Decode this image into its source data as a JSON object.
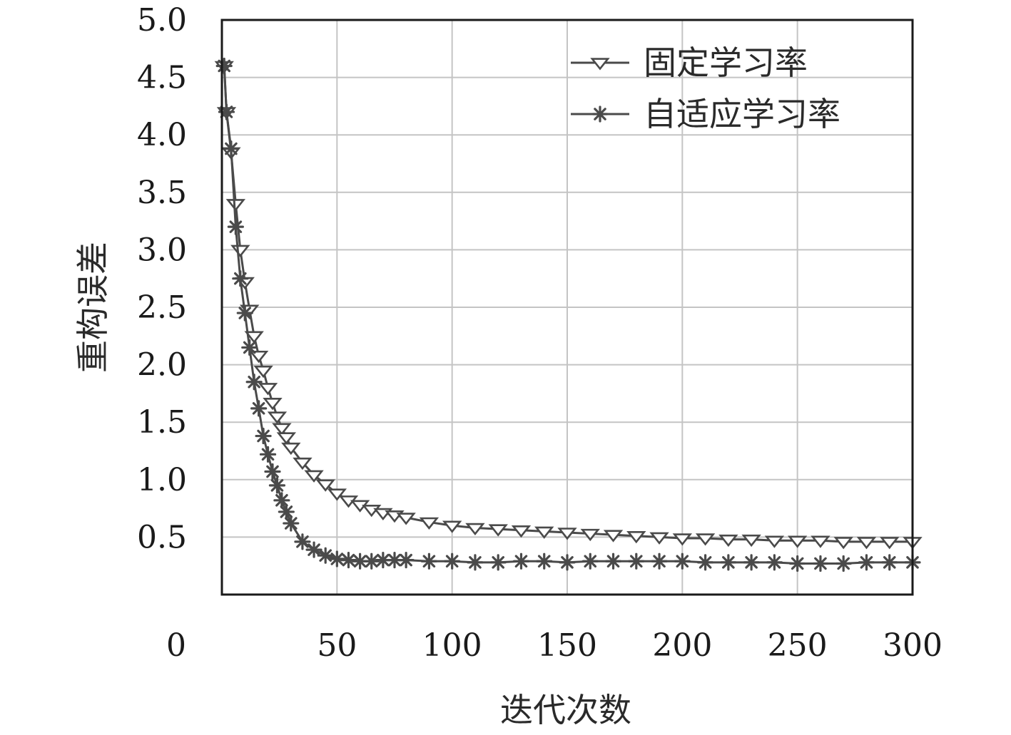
{
  "chart_data": {
    "type": "line",
    "title": "",
    "xlabel": "迭代次数",
    "ylabel": "重构误差",
    "xlim": [
      0,
      300
    ],
    "ylim": [
      0,
      5.0
    ],
    "xticks": [
      0,
      50,
      100,
      150,
      200,
      250,
      300
    ],
    "xtick_labels": [
      "0",
      "50",
      "100",
      "150",
      "200",
      "250",
      "300"
    ],
    "yticks": [
      0.5,
      1.0,
      1.5,
      2.0,
      2.5,
      3.0,
      3.5,
      4.0,
      4.5,
      5.0
    ],
    "ytick_labels": [
      "0.5",
      "1.0",
      "1.5",
      "2.0",
      "2.5",
      "3.0",
      "3.5",
      "4.0",
      "4.5",
      "5.0"
    ],
    "grid": true,
    "legend_position": "top-right",
    "line_color": "#4a4a4a",
    "series": [
      {
        "name": "固定学习率",
        "marker": "triangle-down",
        "x": [
          1,
          2,
          4,
          6,
          8,
          10,
          12,
          14,
          16,
          18,
          20,
          22,
          24,
          26,
          28,
          30,
          35,
          40,
          45,
          50,
          55,
          60,
          65,
          70,
          75,
          80,
          90,
          100,
          110,
          120,
          130,
          140,
          150,
          160,
          170,
          180,
          190,
          200,
          210,
          220,
          230,
          240,
          250,
          260,
          270,
          280,
          290,
          300
        ],
        "y": [
          4.6,
          4.2,
          3.85,
          3.4,
          3.0,
          2.72,
          2.48,
          2.25,
          2.08,
          1.95,
          1.8,
          1.67,
          1.55,
          1.45,
          1.37,
          1.28,
          1.15,
          1.04,
          0.96,
          0.88,
          0.82,
          0.78,
          0.74,
          0.71,
          0.69,
          0.67,
          0.63,
          0.6,
          0.58,
          0.57,
          0.56,
          0.55,
          0.54,
          0.53,
          0.52,
          0.51,
          0.5,
          0.49,
          0.49,
          0.48,
          0.48,
          0.47,
          0.47,
          0.47,
          0.46,
          0.46,
          0.46,
          0.46
        ]
      },
      {
        "name": "自适应学习率",
        "marker": "asterisk",
        "x": [
          1,
          2,
          4,
          6,
          8,
          10,
          12,
          14,
          16,
          18,
          20,
          22,
          24,
          26,
          28,
          30,
          35,
          40,
          45,
          50,
          55,
          60,
          65,
          70,
          75,
          80,
          90,
          100,
          110,
          120,
          130,
          140,
          150,
          160,
          170,
          180,
          190,
          200,
          210,
          220,
          230,
          240,
          250,
          260,
          270,
          280,
          290,
          300
        ],
        "y": [
          4.6,
          4.2,
          3.88,
          3.2,
          2.75,
          2.45,
          2.15,
          1.85,
          1.62,
          1.38,
          1.22,
          1.07,
          0.95,
          0.82,
          0.72,
          0.62,
          0.46,
          0.39,
          0.34,
          0.31,
          0.3,
          0.29,
          0.29,
          0.3,
          0.3,
          0.3,
          0.29,
          0.29,
          0.28,
          0.28,
          0.29,
          0.29,
          0.28,
          0.29,
          0.29,
          0.29,
          0.29,
          0.29,
          0.28,
          0.28,
          0.28,
          0.28,
          0.27,
          0.27,
          0.27,
          0.28,
          0.28,
          0.28
        ]
      }
    ]
  }
}
